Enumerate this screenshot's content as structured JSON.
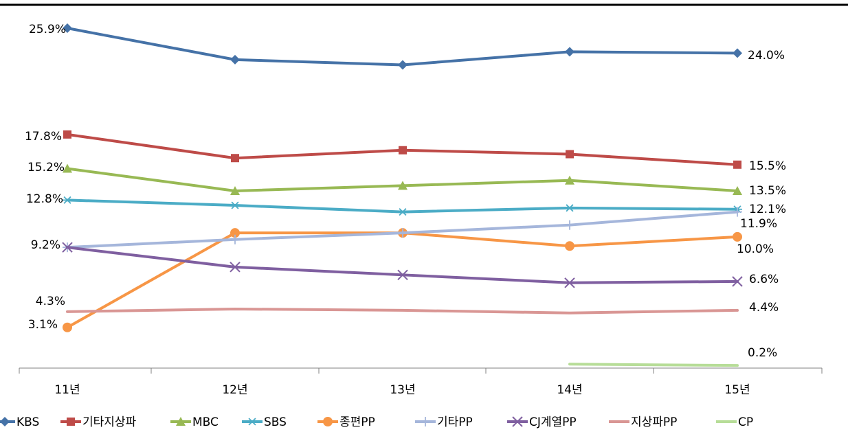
{
  "chart_data": {
    "type": "line",
    "categories": [
      "11년",
      "12년",
      "13년",
      "14년",
      "15년"
    ],
    "ylim": [
      0,
      27
    ],
    "grid": false,
    "legend_position": "bottom",
    "series": [
      {
        "name": "KBS",
        "color": "#4572A7",
        "marker": "diamond",
        "values": [
          25.9,
          23.5,
          23.1,
          24.1,
          24.0
        ],
        "labels": {
          "0": "25.9%",
          "4": "24.0%"
        }
      },
      {
        "name": "기타지상파",
        "color": "#BE4B48",
        "marker": "square",
        "values": [
          17.8,
          16.0,
          16.6,
          16.3,
          15.5
        ],
        "labels": {
          "0": "17.8%",
          "4": "15.5%"
        }
      },
      {
        "name": "MBC",
        "color": "#98B954",
        "marker": "triangle",
        "values": [
          15.2,
          13.5,
          13.9,
          14.3,
          13.5
        ],
        "labels": {
          "0": "15.2%",
          "4": "13.5%"
        }
      },
      {
        "name": "SBS",
        "color": "#4BACC6",
        "marker": "star",
        "values": [
          12.8,
          12.4,
          11.9,
          12.2,
          12.1
        ],
        "labels": {
          "0": "12.8%",
          "4": "12.1%"
        }
      },
      {
        "name": "종편PP",
        "color": "#F79646",
        "marker": "circle",
        "values": [
          3.1,
          10.3,
          10.3,
          9.3,
          10.0
        ],
        "labels": {
          "0": "3.1%",
          "4": "10.0%"
        }
      },
      {
        "name": "기타PP",
        "color": "#A5B6DB",
        "marker": "plus",
        "values": [
          9.2,
          9.8,
          10.3,
          10.9,
          11.9
        ],
        "labels": {
          "4": "11.9%"
        }
      },
      {
        "name": "CJ계열PP",
        "color": "#7F5FA0",
        "marker": "x",
        "values": [
          9.2,
          7.7,
          7.1,
          6.5,
          6.6
        ],
        "labels": {
          "0": "9.2%",
          "4": "6.6%"
        }
      },
      {
        "name": "지상파PP",
        "color": "#D99694",
        "marker": "none",
        "values": [
          4.3,
          4.5,
          4.4,
          4.2,
          4.4
        ],
        "labels": {
          "0": "4.3%",
          "4": "4.4%"
        }
      },
      {
        "name": "CP",
        "color": "#B7DD98",
        "marker": "none",
        "values": [
          null,
          null,
          null,
          0.3,
          0.2
        ],
        "labels": {
          "4": "0.2%"
        }
      }
    ]
  }
}
